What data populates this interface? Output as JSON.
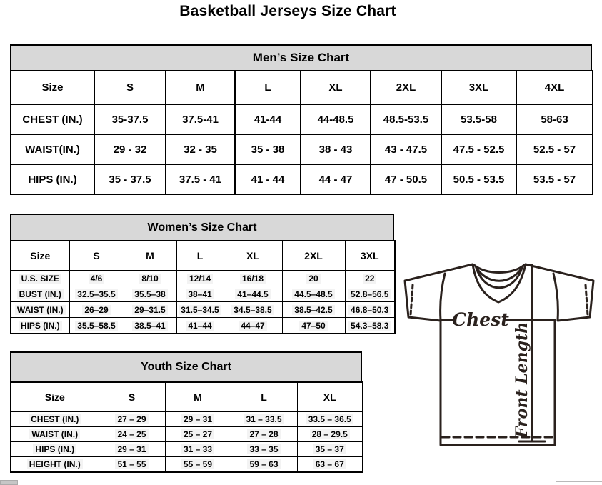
{
  "title": "Basketball Jerseys Size Chart",
  "tables": {
    "men": {
      "header": "Men’s Size Chart",
      "columns": [
        "Size",
        "S",
        "M",
        "L",
        "XL",
        "2XL",
        "3XL",
        "4XL"
      ],
      "rows": [
        {
          "label": "CHEST (IN.)",
          "values": [
            "35-37.5",
            "37.5-41",
            "41-44",
            "44-48.5",
            "48.5-53.5",
            "53.5-58",
            "58-63"
          ]
        },
        {
          "label": "WAIST(IN.)",
          "values": [
            "29 - 32",
            "32 - 35",
            "35 - 38",
            "38 - 43",
            "43 - 47.5",
            "47.5 - 52.5",
            "52.5 - 57"
          ]
        },
        {
          "label": "HIPS (IN.)",
          "values": [
            "35 - 37.5",
            "37.5 - 41",
            "41 - 44",
            "44 - 47",
            "47 - 50.5",
            "50.5 - 53.5",
            "53.5 - 57"
          ]
        }
      ]
    },
    "women": {
      "header": "Women’s Size Chart",
      "columns": [
        "Size",
        "S",
        "M",
        "L",
        "XL",
        "2XL",
        "3XL"
      ],
      "rows": [
        {
          "label": "U.S. SIZE",
          "values": [
            "4/6",
            "8/10",
            "12/14",
            "16/18",
            "20",
            "22"
          ]
        },
        {
          "label": "BUST (IN.)",
          "values": [
            "32.5–35.5",
            "35.5–38",
            "38–41",
            "41–44.5",
            "44.5–48.5",
            "52.8–56.5"
          ]
        },
        {
          "label": "WAIST (IN.)",
          "values": [
            "26–29",
            "29–31.5",
            "31.5–34.5",
            "34.5–38.5",
            "38.5–42.5",
            "46.8–50.3"
          ]
        },
        {
          "label": "HIPS (IN.)",
          "values": [
            "35.5–58.5",
            "38.5–41",
            "41–44",
            "44–47",
            "47–50",
            "54.3–58.3"
          ]
        }
      ]
    },
    "youth": {
      "header": "Youth Size Chart",
      "columns": [
        "Size",
        "S",
        "M",
        "L",
        "XL"
      ],
      "rows": [
        {
          "label": "CHEST (IN.)",
          "values": [
            "27 – 29",
            "29 – 31",
            "31 – 33.5",
            "33.5 – 36.5"
          ]
        },
        {
          "label": "WAIST (IN.)",
          "values": [
            "24 – 25",
            "25 – 27",
            "27 – 28",
            "28 – 29.5"
          ]
        },
        {
          "label": "HIPS (IN.)",
          "values": [
            "29 – 31",
            "31 – 33",
            "33 – 35",
            "35 – 37"
          ]
        },
        {
          "label": "HEIGHT (IN.)",
          "values": [
            "51 – 55",
            "55 – 59",
            "59 – 63",
            "63 – 67"
          ]
        }
      ]
    }
  },
  "diagram": {
    "chest_label": "Chest",
    "front_length_label": "Front Length"
  },
  "colors": {
    "header_bg": "#d8d8d8",
    "table_border": "#000000",
    "diagram_stroke": "#2a211d",
    "cell_highlight": "#f3f3f3",
    "scrollbar": "#c6c6c6"
  }
}
